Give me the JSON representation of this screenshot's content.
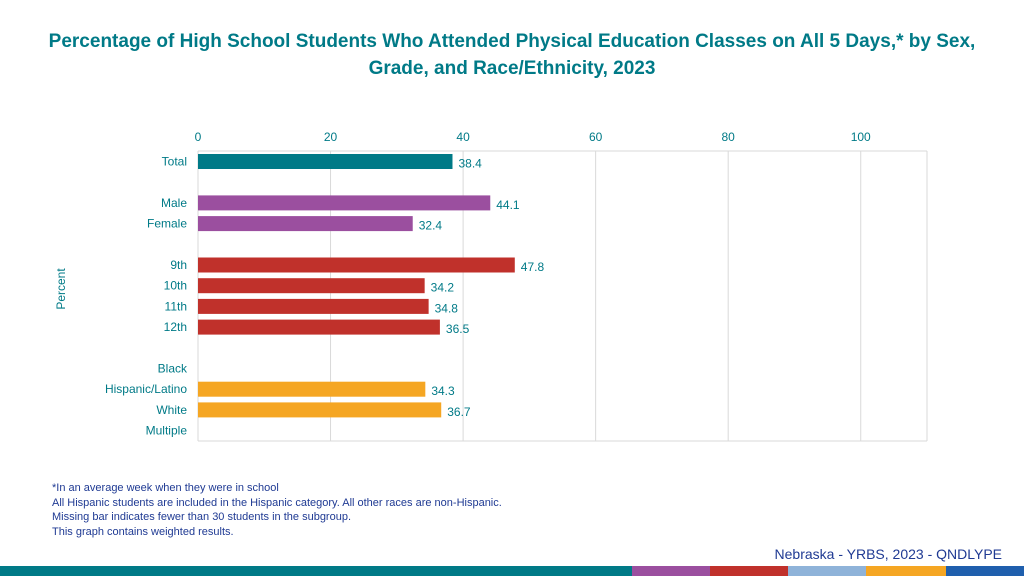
{
  "title": "Percentage of High School Students Who Attended Physical Education Classes on All 5 Days,* by Sex, Grade, and Race/Ethnicity, 2023",
  "chart_data": {
    "type": "bar",
    "orientation": "horizontal",
    "title": "Percentage of High School Students Who Attended Physical Education Classes on All 5 Days,* by Sex, Grade, and Race/Ethnicity, 2023",
    "xlabel": "",
    "ylabel": "Percent",
    "xlim": [
      0,
      110
    ],
    "ticks": [
      0,
      20,
      40,
      60,
      80,
      100
    ],
    "grid": true,
    "categories": [
      {
        "label": "Total",
        "value": 38.4,
        "color": "#007A87"
      },
      {
        "label": "",
        "value": null,
        "gap": true
      },
      {
        "label": "Male",
        "value": 44.1,
        "color": "#9B4F9F"
      },
      {
        "label": "Female",
        "value": 32.4,
        "color": "#9B4F9F"
      },
      {
        "label": "",
        "value": null,
        "gap": true
      },
      {
        "label": "9th",
        "value": 47.8,
        "color": "#C0312B"
      },
      {
        "label": "10th",
        "value": 34.2,
        "color": "#C0312B"
      },
      {
        "label": "11th",
        "value": 34.8,
        "color": "#C0312B"
      },
      {
        "label": "12th",
        "value": 36.5,
        "color": "#C0312B"
      },
      {
        "label": "",
        "value": null,
        "gap": true
      },
      {
        "label": "Black",
        "value": null,
        "color": "#F5A623"
      },
      {
        "label": "Hispanic/Latino",
        "value": 34.3,
        "color": "#F5A623"
      },
      {
        "label": "White",
        "value": 36.7,
        "color": "#F5A623"
      },
      {
        "label": "Multiple",
        "value": null,
        "color": "#F5A623"
      }
    ]
  },
  "footnotes": [
    "*In an average week when they were in school",
    "All Hispanic students are included in the Hispanic category.  All other races are non-Hispanic.",
    "Missing bar indicates fewer than 30 students in the subgroup.",
    "This graph contains weighted results."
  ],
  "source": "Nebraska - YRBS, 2023 - QNDLYPE",
  "colors": {
    "title": "#007A87",
    "axis_text": "#007A87",
    "value_label": "#007A87",
    "footnote": "#1F3A93",
    "source": "#1F3A93",
    "gridline": "#D9D9D9"
  },
  "bottom_bar": [
    "#007A87",
    "#9B4F9F",
    "#C0312B",
    "#8FB3D9",
    "#F5A623",
    "#1F5FAD"
  ]
}
